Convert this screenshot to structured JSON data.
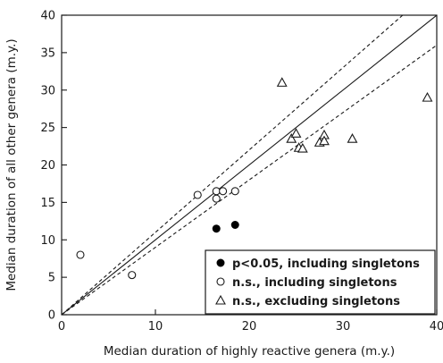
{
  "chart_data": {
    "type": "scatter",
    "xlabel": "Median duration of highly reactive genera (m.y.)",
    "ylabel": "Median duration of all other genera (m.y.)",
    "xlim": [
      0,
      40
    ],
    "ylim": [
      0,
      40
    ],
    "xticks": [
      0,
      10,
      20,
      30,
      40
    ],
    "yticks": [
      0,
      5,
      10,
      15,
      20,
      25,
      30,
      35,
      40
    ],
    "grid": false,
    "legend_position": "bottom-right",
    "series": [
      {
        "name": "p<0.05, including singletons",
        "marker": "filled-circle",
        "points": [
          [
            16.5,
            11.5
          ],
          [
            18.5,
            12.0
          ]
        ]
      },
      {
        "name": "n.s., including singletons",
        "marker": "open-circle",
        "points": [
          [
            2.0,
            8.0
          ],
          [
            7.5,
            5.3
          ],
          [
            14.5,
            16.0
          ],
          [
            16.5,
            16.5
          ],
          [
            16.5,
            15.5
          ],
          [
            17.2,
            16.5
          ],
          [
            18.5,
            16.5
          ]
        ]
      },
      {
        "name": "n.s., excluding singletons",
        "marker": "open-triangle",
        "points": [
          [
            23.5,
            31.0
          ],
          [
            24.5,
            23.5
          ],
          [
            25.0,
            24.2
          ],
          [
            25.3,
            22.3
          ],
          [
            25.7,
            22.2
          ],
          [
            27.5,
            23.0
          ],
          [
            28.0,
            24.0
          ],
          [
            28.0,
            23.2
          ],
          [
            31.0,
            23.5
          ],
          [
            39.0,
            29.0
          ]
        ]
      }
    ],
    "reference_lines": [
      {
        "style": "solid",
        "slope": 1.0
      },
      {
        "style": "dashed",
        "slope": 1.1
      },
      {
        "style": "dashed",
        "slope": 0.9
      }
    ]
  }
}
